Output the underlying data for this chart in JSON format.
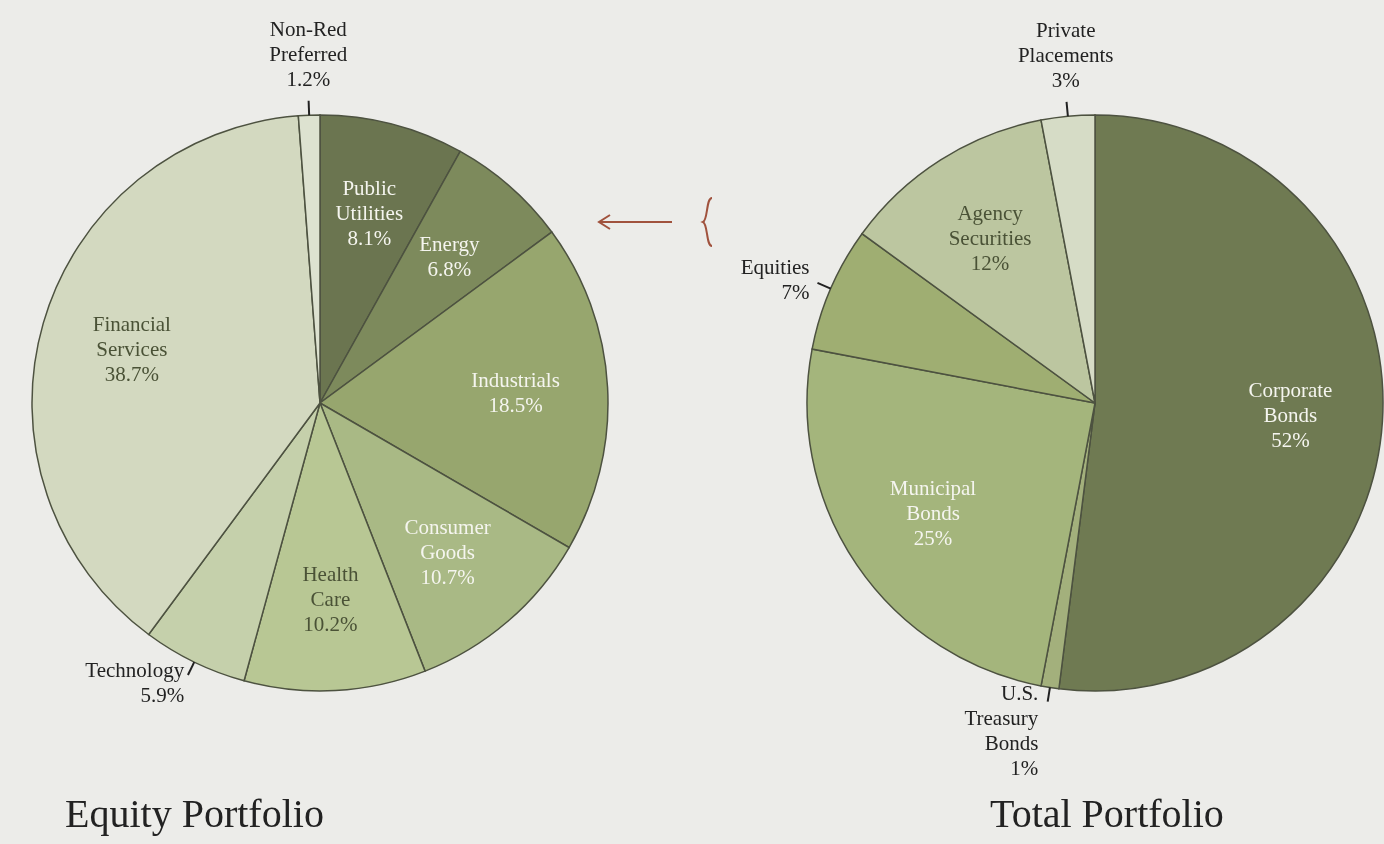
{
  "chart_data": [
    {
      "type": "pie",
      "title": "Equity Portfolio",
      "categories": [
        "Public Utilities",
        "Energy",
        "Industrials",
        "Consumer Goods",
        "Health Care",
        "Technology",
        "Financial Services",
        "Non-Red Preferred"
      ],
      "values": [
        8.1,
        6.8,
        18.5,
        10.7,
        10.2,
        5.9,
        38.7,
        1.2
      ],
      "value_labels": [
        "8.1%",
        "6.8%",
        "18.5%",
        "10.7%",
        "10.2%",
        "5.9%",
        "38.7%",
        "1.2%"
      ],
      "colors": [
        "#6b7550",
        "#7d8a5c",
        "#97a66e",
        "#a9b985",
        "#b8c794",
        "#c5d0ab",
        "#d3d9c0",
        "#dde2d0"
      ]
    },
    {
      "type": "pie",
      "title": "Total Portfolio",
      "categories": [
        "Corporate Bonds",
        "U.S. Treasury Bonds",
        "Municipal Bonds",
        "Equities",
        "Agency Securities",
        "Private Placements"
      ],
      "values": [
        52,
        1,
        25,
        7,
        12,
        3
      ],
      "value_labels": [
        "52%",
        "1%",
        "25%",
        "7%",
        "12%",
        "3%"
      ],
      "colors": [
        "#6f7a52",
        "#a3b07c",
        "#a4b57c",
        "#9fae72",
        "#bcc6a0",
        "#d6dcc6"
      ]
    }
  ]
}
